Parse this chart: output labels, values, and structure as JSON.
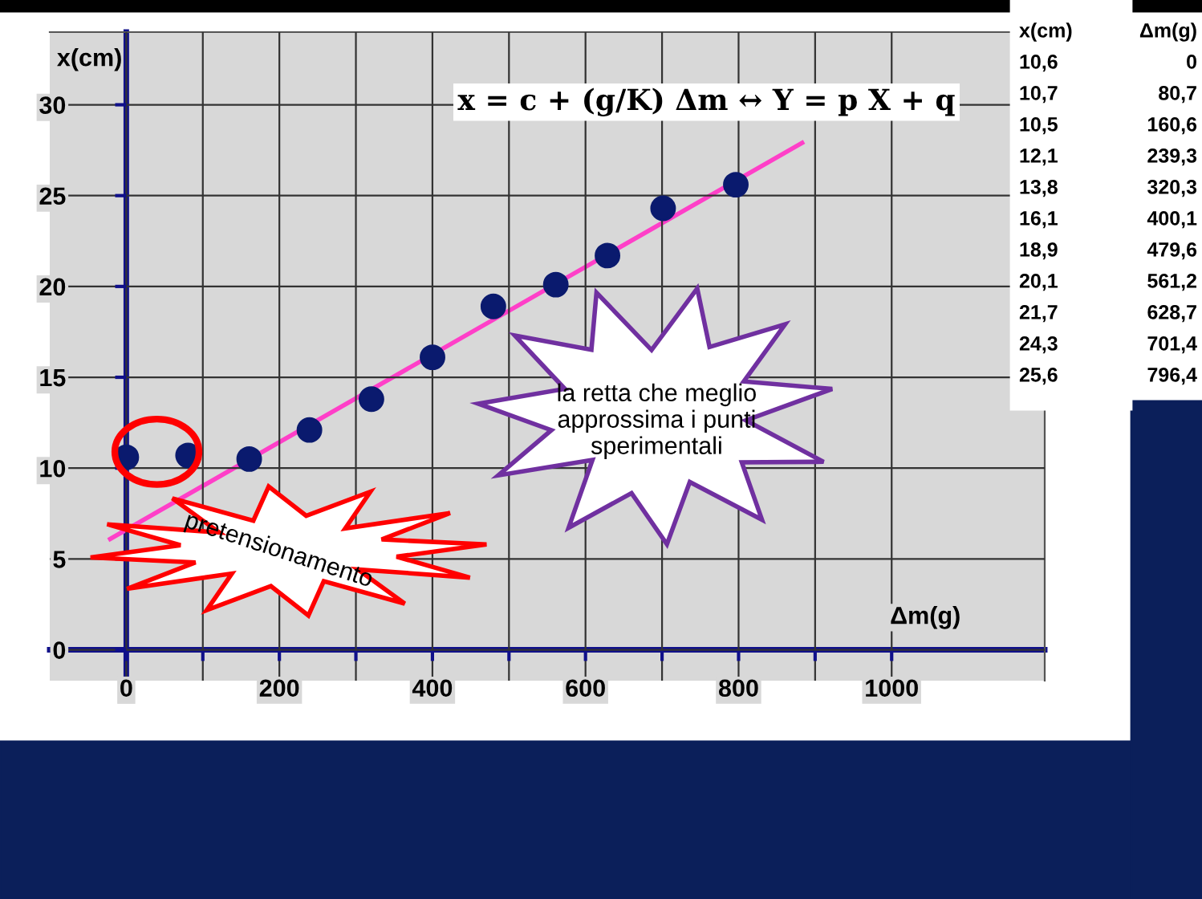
{
  "chart_data": {
    "type": "scatter",
    "xlabel": "Δm(g)",
    "ylabel": "x(cm)",
    "x": [
      0,
      80.7,
      160.6,
      239.3,
      320.3,
      400.1,
      479.6,
      561.2,
      628.7,
      701.4,
      796.4
    ],
    "series": [
      {
        "color": "#0a1a6e",
        "marker": "circle",
        "values": [
          10.6,
          10.7,
          10.5,
          12.1,
          13.8,
          16.1,
          18.9,
          20.1,
          21.7,
          24.3,
          25.6
        ]
      },
      {
        "type": "line",
        "color": "#ff3fc8",
        "x": [
          -21,
          883
        ],
        "values": [
          6.1,
          27.9
        ]
      }
    ],
    "xlim": [
      -100,
      1200
    ],
    "xticks": [
      0,
      {
        "value": 100,
        "label": null
      },
      200,
      {
        "value": 300,
        "label": null
      },
      400,
      {
        "value": 500,
        "label": null
      },
      600,
      {
        "value": 700,
        "label": null
      },
      800,
      {
        "value": 900,
        "label": null
      },
      1000
    ],
    "ylim": [
      -1.7,
      34
    ],
    "yticks": [
      0,
      5,
      10,
      15,
      20,
      25,
      30
    ],
    "grid": true,
    "annotations": [
      "x = c + (g/K) Δm ↔ Y = p X + q",
      "la retta che meglio approssima i punti sperimentali",
      "pretensionamento",
      "x(cm)",
      "Δm(g)",
      "10,6",
      "0",
      "10,7",
      "80,7",
      "10,5",
      "160,6",
      "12,1",
      "239,3",
      "13,8",
      "320,3",
      "16,1",
      "400,1",
      "18,9",
      "479,6",
      "20,1",
      "561,2",
      "21,7",
      "628,7",
      "24,3",
      "701,4",
      "25,6",
      "796,4"
    ]
  }
}
